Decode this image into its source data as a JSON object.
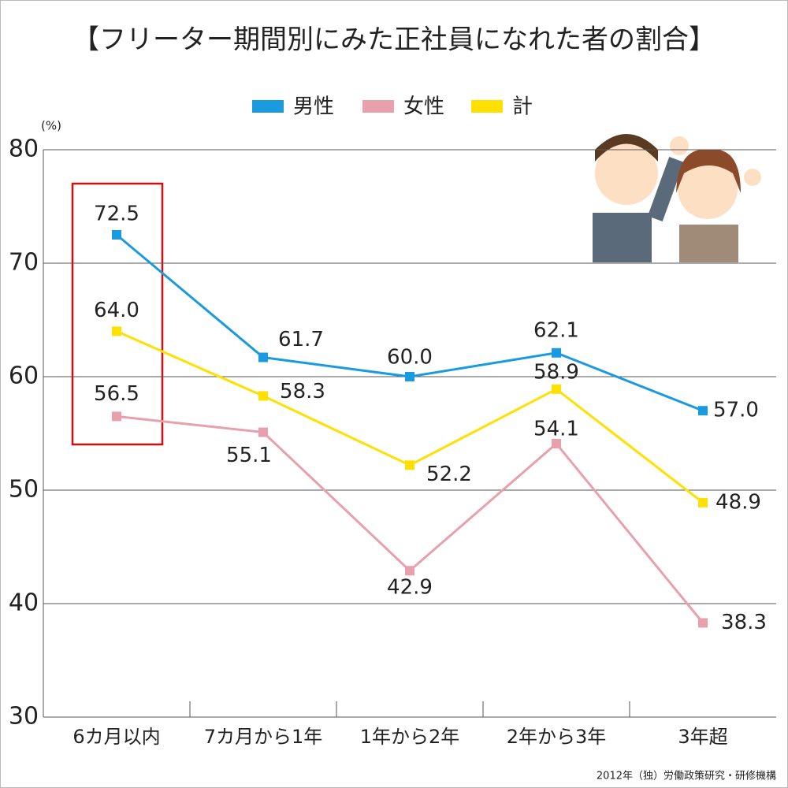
{
  "chart_data": {
    "type": "line",
    "title": "【フリーター期間別にみた正社員になれた者の割合】",
    "y_unit": "(%)",
    "source": "2012年（独）労働政策研究・研修機構",
    "categories": [
      "6カ月以内",
      "7カ月から1年",
      "1年から2年",
      "2年から3年",
      "3年超"
    ],
    "series": [
      {
        "name": "男性",
        "color": "#1a9be0",
        "values": [
          72.5,
          61.7,
          60.0,
          62.1,
          57.0
        ],
        "value_labels": [
          "72.5",
          "61.7",
          "60.0",
          "62.1",
          "57.0"
        ]
      },
      {
        "name": "女性",
        "color": "#e8a0ac",
        "values": [
          56.5,
          55.1,
          42.9,
          54.1,
          38.3
        ],
        "value_labels": [
          "56.5",
          "55.1",
          "42.9",
          "54.1",
          "38.3"
        ]
      },
      {
        "name": "計",
        "color": "#ffe000",
        "values": [
          64.0,
          58.3,
          52.2,
          58.9,
          48.9
        ],
        "value_labels": [
          "64.0",
          "58.3",
          "52.2",
          "58.9",
          "48.9"
        ]
      }
    ],
    "ylim": [
      30,
      80
    ],
    "yticks": [
      30,
      40,
      50,
      60,
      70,
      80
    ],
    "grid": true
  }
}
